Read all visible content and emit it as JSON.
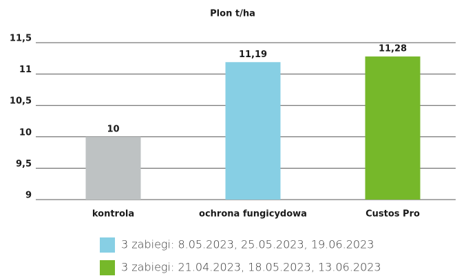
{
  "chart_data": {
    "type": "bar",
    "title": "Plon t/ha",
    "categories": [
      "kontrola",
      "ochrona fungicydowa",
      "Custos Pro"
    ],
    "values": [
      10,
      11.19,
      11.28
    ],
    "value_labels": [
      "10",
      "11,19",
      "11,28"
    ],
    "colors": [
      "#bec2c3",
      "#87cfe4",
      "#76b82a"
    ],
    "ylim": [
      9,
      11.5
    ],
    "yticks": [
      9,
      {
        "value": 9.5,
        "label": "9,5"
      },
      10,
      {
        "value": 10.5,
        "label": "10,5"
      },
      11,
      {
        "value": 11.5,
        "label": "11,5"
      }
    ],
    "grid": true,
    "legend": [
      {
        "label": "3 zabiegi: 8.05.2023, 25.05.2023, 19.06.2023",
        "color": "#87cfe4"
      },
      {
        "label": "3 zabiegi: 21.04.2023, 18.05.2023, 13.06.2023",
        "color": "#76b82a"
      }
    ]
  }
}
